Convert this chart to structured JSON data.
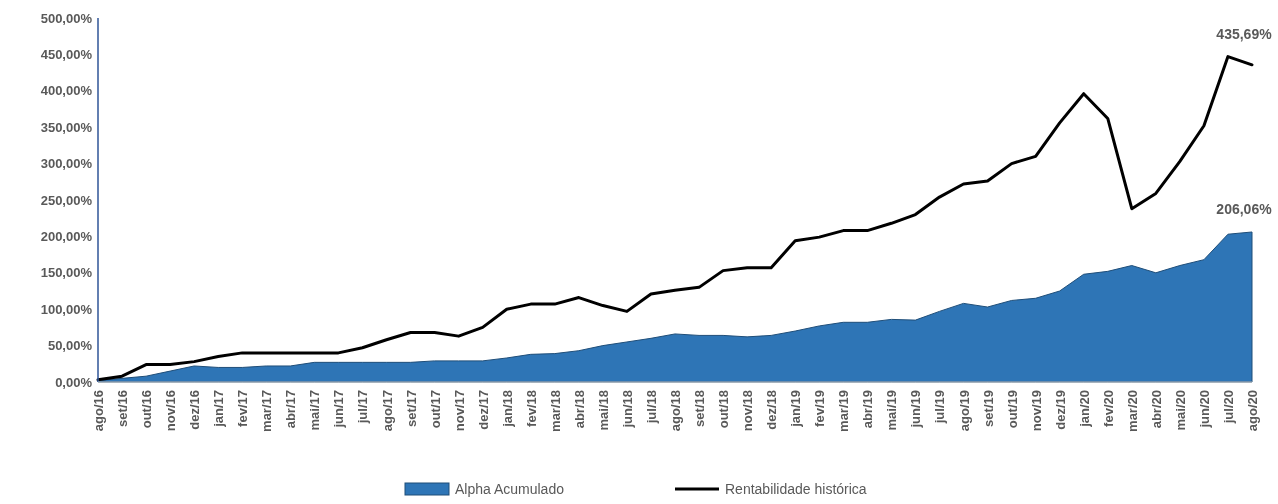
{
  "chart_data": {
    "type": "area",
    "categories": [
      "ago/16",
      "set/16",
      "out/16",
      "nov/16",
      "dez/16",
      "jan/17",
      "fev/17",
      "mar/17",
      "abr/17",
      "mai/17",
      "jun/17",
      "jul/17",
      "ago/17",
      "set/17",
      "out/17",
      "nov/17",
      "dez/17",
      "jan/18",
      "fev/18",
      "mar/18",
      "abr/18",
      "mai/18",
      "jun/18",
      "jul/18",
      "ago/18",
      "set/18",
      "out/18",
      "nov/18",
      "dez/18",
      "jan/19",
      "fev/19",
      "mar/19",
      "abr/19",
      "mai/19",
      "jun/19",
      "jul/19",
      "ago/19",
      "set/19",
      "out/19",
      "nov/19",
      "dez/19",
      "jan/20",
      "fev/20",
      "mar/20",
      "abr/20",
      "mai/20",
      "jun/20",
      "jul/20",
      "ago/20"
    ],
    "series": [
      {
        "name": "Alpha Acumulado",
        "color": "#2e75b6",
        "values": [
          2,
          5,
          8,
          15,
          22,
          20,
          20,
          22,
          22,
          27,
          27,
          27,
          27,
          27,
          29,
          29,
          29,
          33,
          38,
          39,
          43,
          50,
          55,
          60,
          66,
          64,
          64,
          62,
          64,
          70,
          77,
          82,
          82,
          86,
          85,
          97,
          108,
          103,
          112,
          115,
          125,
          148,
          152,
          160,
          150,
          160,
          168,
          203,
          206.06
        ],
        "value_labels": [
          null,
          null,
          null,
          null,
          null,
          null,
          null,
          null,
          null,
          null,
          null,
          null,
          null,
          null,
          null,
          null,
          null,
          null,
          null,
          null,
          null,
          null,
          null,
          null,
          null,
          null,
          null,
          null,
          null,
          null,
          null,
          null,
          null,
          null,
          null,
          null,
          null,
          null,
          null,
          null,
          null,
          null,
          null,
          null,
          null,
          null,
          null,
          null,
          "206,06%"
        ]
      },
      {
        "name": "Rentabilidade histórica",
        "type": "line",
        "color": "#000000",
        "values": [
          3,
          8,
          24,
          24,
          28,
          35,
          40,
          40,
          40,
          40,
          40,
          47,
          58,
          68,
          68,
          63,
          75,
          100,
          107,
          107,
          116,
          105,
          97,
          121,
          126,
          130,
          153,
          157,
          157,
          194,
          199,
          208,
          208,
          218,
          230,
          254,
          272,
          276,
          300,
          310,
          356,
          396,
          362,
          238,
          259,
          303,
          352,
          447,
          435.69
        ],
        "value_labels": [
          null,
          null,
          null,
          null,
          null,
          null,
          null,
          null,
          null,
          null,
          null,
          null,
          null,
          null,
          null,
          null,
          null,
          null,
          null,
          null,
          null,
          null,
          null,
          null,
          null,
          null,
          null,
          null,
          null,
          null,
          null,
          null,
          null,
          null,
          null,
          null,
          null,
          null,
          null,
          null,
          null,
          null,
          null,
          null,
          null,
          null,
          null,
          null,
          "435,69%"
        ]
      }
    ],
    "ylim": [
      0,
      500
    ],
    "yticks": [
      {
        "value": 0,
        "label": "0,00%"
      },
      {
        "value": 50,
        "label": "50,00%"
      },
      {
        "value": 100,
        "label": "100,00%"
      },
      {
        "value": 150,
        "label": "150,00%"
      },
      {
        "value": 200,
        "label": "200,00%"
      },
      {
        "value": 250,
        "label": "250,00%"
      },
      {
        "value": 300,
        "label": "300,00%"
      },
      {
        "value": 350,
        "label": "350,00%"
      },
      {
        "value": 400,
        "label": "400,00%"
      },
      {
        "value": 450,
        "label": "450,00%"
      },
      {
        "value": 500,
        "label": "500,00%"
      }
    ],
    "legend": "bottom",
    "grid": false
  }
}
